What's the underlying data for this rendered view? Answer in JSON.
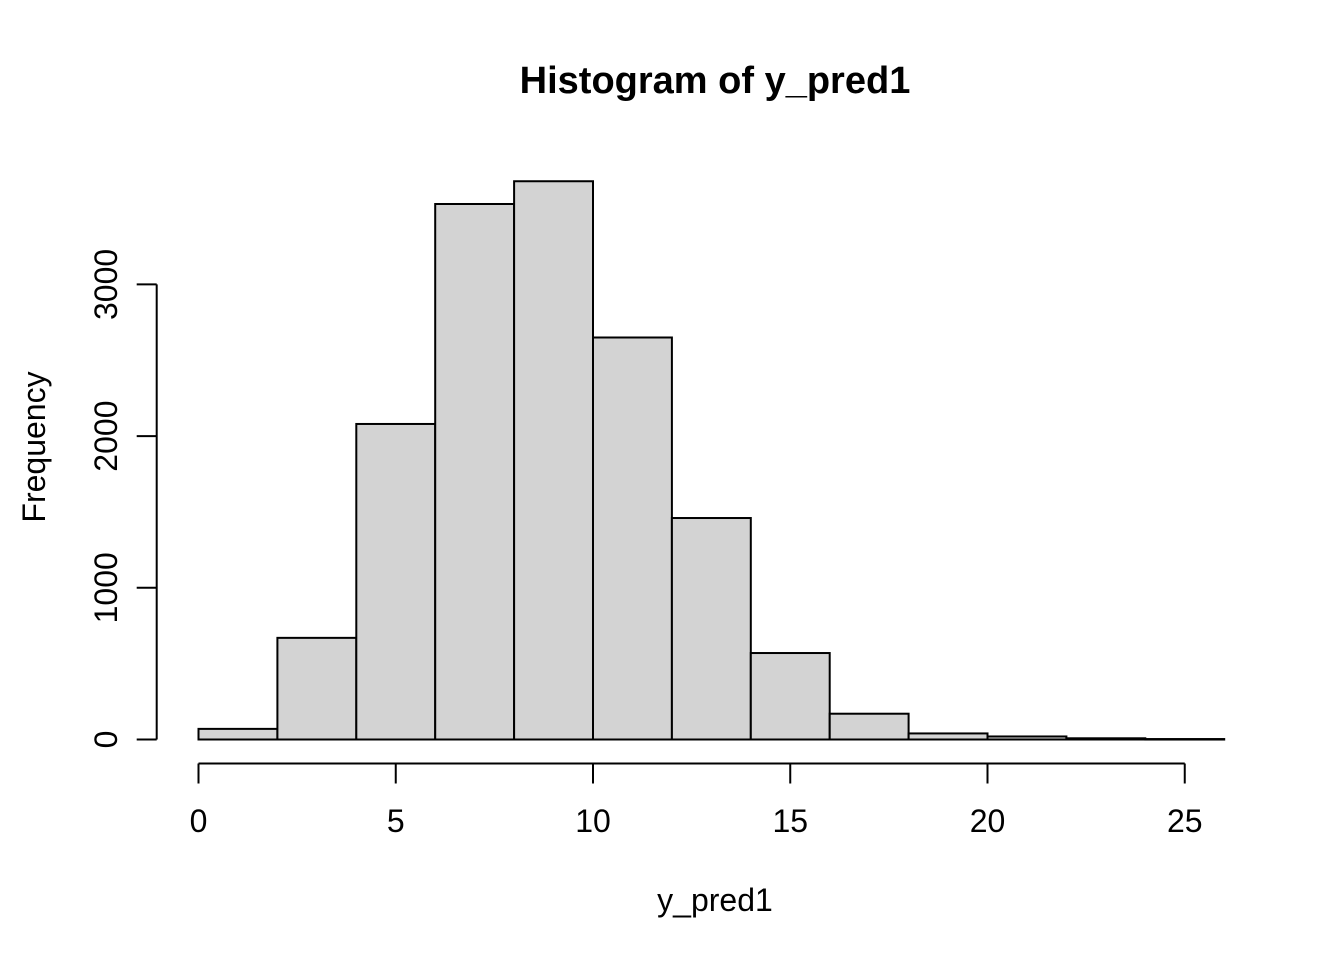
{
  "chart_data": {
    "type": "bar",
    "subtype": "histogram",
    "title": "Histogram of y_pred1",
    "xlabel": "y_pred1",
    "ylabel": "Frequency",
    "bin_width": 2,
    "bin_edges": [
      0,
      2,
      4,
      6,
      8,
      10,
      12,
      14,
      16,
      18,
      20,
      22,
      24,
      26
    ],
    "counts": [
      70,
      670,
      2080,
      3530,
      3680,
      2650,
      1460,
      570,
      170,
      40,
      20,
      8,
      3
    ],
    "x_ticks": [
      0,
      5,
      10,
      15,
      20,
      25
    ],
    "y_ticks": [
      0,
      1000,
      2000,
      3000
    ],
    "xlim": [
      0,
      26
    ],
    "y_axis_range": [
      0,
      3000
    ],
    "grid": false,
    "legend": false,
    "colors": {
      "bar_fill": "#d3d3d3",
      "bar_stroke": "#000000",
      "axis": "#000000",
      "text": "#000000",
      "background": "#ffffff"
    }
  }
}
